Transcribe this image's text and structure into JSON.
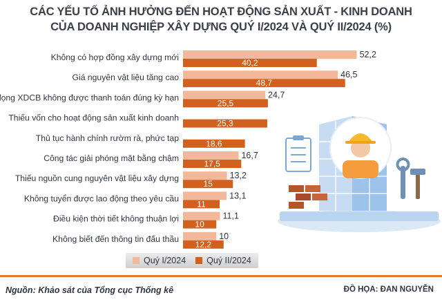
{
  "title_line1": "CÁC YẾU TỐ ẢNH HƯỞNG ĐẾN HOẠT ĐỘNG SẢN XUẤT - KINH DOANH",
  "title_line2": "CỦA DOANH NGHIỆP XÂY DỰNG QUÝ I/2024 VÀ QUÝ II/2024 (%)",
  "source": "Nguồn: Khảo sát của Tổng cục Thống kê",
  "credit": "ĐỒ HỌA: ĐAN NGUYỄN",
  "colors": {
    "q1": "#f2b89a",
    "q2": "#d2611f",
    "footer_line": "#e07a3a"
  },
  "chart_data": {
    "type": "bar",
    "orientation": "horizontal",
    "categories": [
      "Không có hợp đồng xây dựng mới",
      "Giá nguyên vật liệu tăng cao",
      "Nợ đọng XDCB không được thanh toán đúng kỳ hạn",
      "Thiếu vốn cho hoạt động sản xuất kinh doanh",
      "Thủ tục hành chính rườm rà, phức tạp",
      "Công tác giải phóng mặt bằng chậm",
      "Thiếu nguồn cung nguyên vật liệu xây dựng",
      "Không tuyển được lao động theo yêu cầu",
      "Điều kiện thời tiết không thuận lợi",
      "Không biết đến thông tin đấu thầu"
    ],
    "series": [
      {
        "name": "Quý I/2024",
        "values": [
          52.2,
          46.5,
          24.7,
          null,
          null,
          16.7,
          13.2,
          13.1,
          11.1,
          10
        ],
        "labels": [
          "52,2",
          "46,5",
          "24,7",
          "",
          "",
          "16,7",
          "13,2",
          "13,1",
          "11,1",
          "10"
        ]
      },
      {
        "name": "Quý II/2024",
        "values": [
          40.2,
          48.7,
          25.5,
          25.3,
          18.6,
          17.5,
          15,
          11,
          10,
          12.2
        ],
        "labels": [
          "40,2",
          "48,7",
          "25,5",
          "25,3",
          "18,6",
          "17,5",
          "15",
          "11",
          "10",
          "12,2"
        ]
      }
    ],
    "legend_position": "bottom-left",
    "grid": false
  }
}
